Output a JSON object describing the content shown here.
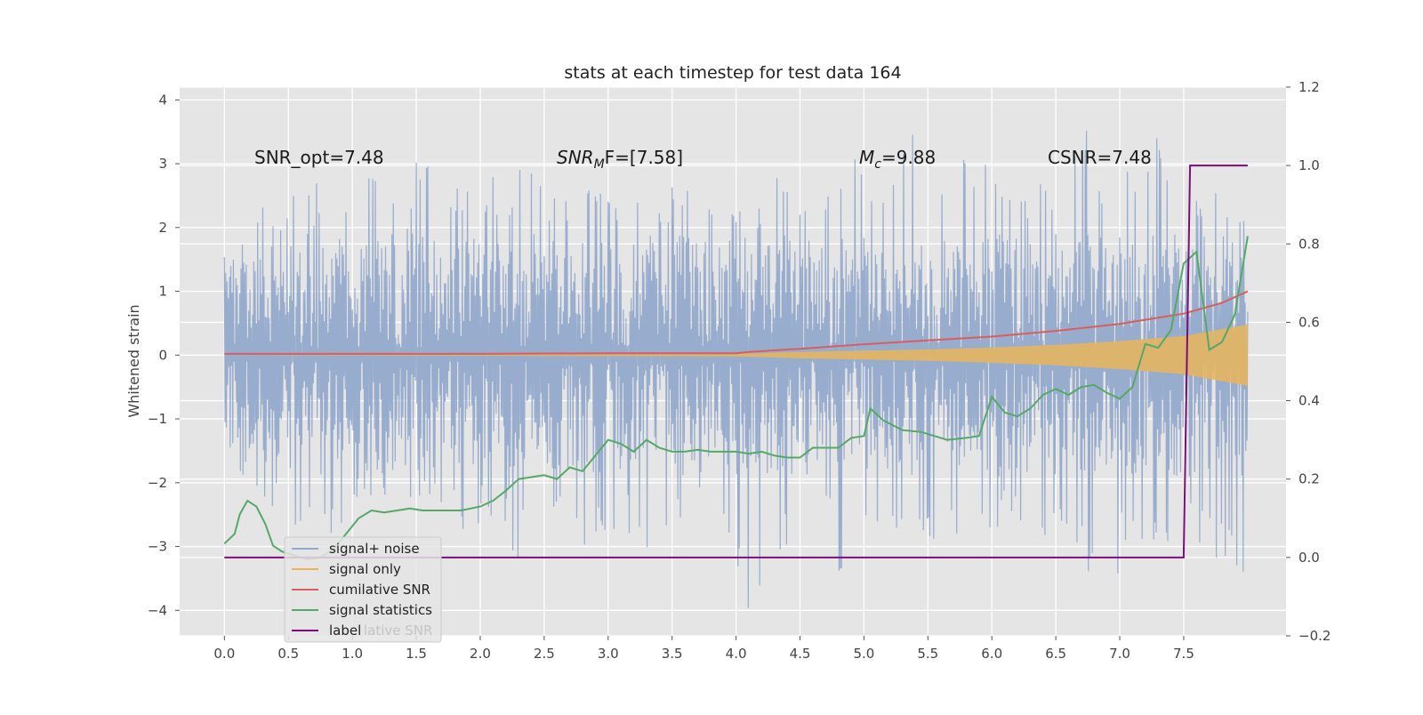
{
  "chart_data": {
    "type": "line",
    "title": "stats at each timestep for test data 164",
    "ylabel": "Whitened strain",
    "xlabel": "",
    "xlim": [
      -0.35,
      8.3
    ],
    "ylim": [
      -4.4,
      4.2
    ],
    "y2lim": [
      -0.2,
      1.2
    ],
    "x_ticks": [
      "0.0",
      "0.5",
      "1.0",
      "1.5",
      "2.0",
      "2.5",
      "3.0",
      "3.5",
      "4.0",
      "4.5",
      "5.0",
      "5.5",
      "6.0",
      "6.5",
      "7.0",
      "7.5"
    ],
    "y_ticks": [
      "4",
      "3",
      "2",
      "1",
      "0",
      "−1",
      "−2",
      "−3",
      "−4"
    ],
    "y2_ticks": [
      "1.2",
      "1.0",
      "0.8",
      "0.6",
      "0.4",
      "0.2",
      "0.0",
      "−0.2"
    ],
    "annotations": {
      "snr_opt": "SNR_opt=7.48",
      "snr_mf_main": "SNR",
      "snr_mf_sub": "M",
      "snr_mf_rest": "F=[7.58]",
      "mc_main": "M",
      "mc_sub": "c",
      "mc_rest": "=9.88",
      "csnr": "CSNR=7.48"
    },
    "legend": {
      "position": "lower-left",
      "items": [
        "signal+ noise",
        "signal only",
        "cumilative SNR",
        "signal statistics",
        "label"
      ],
      "overlap_text": "lative SNR"
    },
    "grid": true,
    "colors": {
      "background": "#e5e5e5",
      "noise": "#94a9cb",
      "signal": "#e8b55a",
      "cumulative_snr": "#d65f5f",
      "signal_statistics": "#55a868",
      "label": "#7a0f7a"
    },
    "series": [
      {
        "name": "signal+ noise",
        "axis": "left",
        "x_start": 0.0,
        "x_end": 8.0,
        "upper_envelope_approx": [
          1.5,
          2.6,
          2.7,
          2.5,
          2.8,
          2.5,
          3.3,
          2.7,
          2.8,
          2.9,
          2.6,
          2.9,
          2.6,
          2.4,
          2.7,
          2.9,
          2.5,
          2.8,
          2.7,
          3.2,
          2.7,
          3.5,
          2.9,
          3.1,
          3.1,
          2.7,
          3.9,
          2.7,
          3.1,
          3.5,
          2.6,
          2.7
        ],
        "lower_envelope_approx": [
          -1.4,
          -2.4,
          -2.8,
          -3.0,
          -2.5,
          -2.9,
          -2.5,
          -2.8,
          -2.7,
          -3.2,
          -2.7,
          -3.0,
          -2.9,
          -3.3,
          -2.6,
          -3.2,
          -4.0,
          -3.1,
          -2.8,
          -3.5,
          -2.9,
          -2.9,
          -3.1,
          -3.0,
          -2.8,
          -2.9,
          -3.1,
          -3.9,
          -3.2,
          -3.1,
          -3.0,
          -3.5
        ]
      },
      {
        "name": "signal only",
        "axis": "left",
        "envelope": [
          [
            0.0,
            0.0
          ],
          [
            4.0,
            0.02
          ],
          [
            4.5,
            0.05
          ],
          [
            5.0,
            0.07
          ],
          [
            5.5,
            0.09
          ],
          [
            6.0,
            0.12
          ],
          [
            6.5,
            0.16
          ],
          [
            7.0,
            0.22
          ],
          [
            7.5,
            0.3
          ],
          [
            8.0,
            0.48
          ]
        ]
      },
      {
        "name": "cumilative SNR",
        "axis": "left",
        "x": [
          0.0,
          1.0,
          2.0,
          3.0,
          4.0,
          4.1,
          4.5,
          5.0,
          5.5,
          6.0,
          6.5,
          7.0,
          7.5,
          7.8,
          8.0
        ],
        "y": [
          0.02,
          0.02,
          0.02,
          0.03,
          0.03,
          0.05,
          0.1,
          0.17,
          0.23,
          0.29,
          0.38,
          0.49,
          0.65,
          0.82,
          1.0
        ]
      },
      {
        "name": "signal statistics",
        "axis": "right",
        "x": [
          0.0,
          0.08,
          0.12,
          0.18,
          0.25,
          0.32,
          0.38,
          0.45,
          0.55,
          0.65,
          0.75,
          0.85,
          0.95,
          1.05,
          1.15,
          1.25,
          1.35,
          1.45,
          1.55,
          1.7,
          1.85,
          2.0,
          2.1,
          2.2,
          2.3,
          2.4,
          2.5,
          2.6,
          2.7,
          2.8,
          2.9,
          3.0,
          3.1,
          3.2,
          3.3,
          3.4,
          3.5,
          3.6,
          3.7,
          3.8,
          3.9,
          4.0,
          4.1,
          4.2,
          4.3,
          4.4,
          4.5,
          4.6,
          4.7,
          4.8,
          4.9,
          5.0,
          5.05,
          5.15,
          5.3,
          5.45,
          5.55,
          5.65,
          5.8,
          5.9,
          6.0,
          6.1,
          6.2,
          6.3,
          6.4,
          6.5,
          6.6,
          6.7,
          6.8,
          6.9,
          7.0,
          7.1,
          7.2,
          7.3,
          7.4,
          7.5,
          7.6,
          7.7,
          7.8,
          7.9,
          8.0
        ],
        "y": [
          0.035,
          0.06,
          0.11,
          0.145,
          0.13,
          0.085,
          0.03,
          0.015,
          0.005,
          -0.005,
          0.0,
          0.02,
          0.06,
          0.1,
          0.12,
          0.115,
          0.12,
          0.125,
          0.12,
          0.12,
          0.12,
          0.13,
          0.145,
          0.17,
          0.2,
          0.205,
          0.21,
          0.2,
          0.23,
          0.22,
          0.26,
          0.3,
          0.29,
          0.27,
          0.3,
          0.28,
          0.27,
          0.27,
          0.275,
          0.27,
          0.27,
          0.27,
          0.265,
          0.27,
          0.26,
          0.255,
          0.255,
          0.28,
          0.28,
          0.28,
          0.305,
          0.31,
          0.38,
          0.35,
          0.325,
          0.32,
          0.31,
          0.3,
          0.305,
          0.31,
          0.41,
          0.37,
          0.36,
          0.38,
          0.415,
          0.43,
          0.415,
          0.435,
          0.44,
          0.42,
          0.405,
          0.435,
          0.545,
          0.535,
          0.58,
          0.75,
          0.78,
          0.53,
          0.55,
          0.62,
          0.82
        ]
      },
      {
        "name": "label",
        "axis": "right",
        "x": [
          0.0,
          7.5,
          7.55,
          8.0
        ],
        "y": [
          0.0,
          0.0,
          1.0,
          1.0
        ]
      }
    ]
  }
}
